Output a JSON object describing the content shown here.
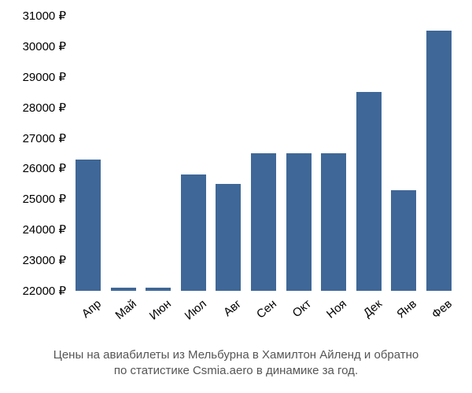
{
  "chart": {
    "type": "bar",
    "categories": [
      "Апр",
      "Май",
      "Июн",
      "Июл",
      "Авг",
      "Сен",
      "Окт",
      "Ноя",
      "Дек",
      "Янв",
      "Фев"
    ],
    "values": [
      26300,
      22100,
      22100,
      25800,
      25500,
      26500,
      26500,
      26500,
      28500,
      25300,
      30500
    ],
    "bar_color": "#3f6797",
    "ylim": [
      22000,
      31000
    ],
    "ytick_step": 1000,
    "y_suffix": " ₽",
    "background_color": "#ffffff",
    "axis_font_size": 15,
    "axis_color": "#000000",
    "x_label_rotation_deg": -40,
    "bar_width_ratio": 0.72,
    "caption_color": "#555555",
    "caption_font_size": 15
  },
  "caption": {
    "line1": "Цены на авиабилеты из Мельбурна в Хамилтон Айленд и обратно",
    "line2": "по статистике Csmia.aero в динамике за год."
  }
}
